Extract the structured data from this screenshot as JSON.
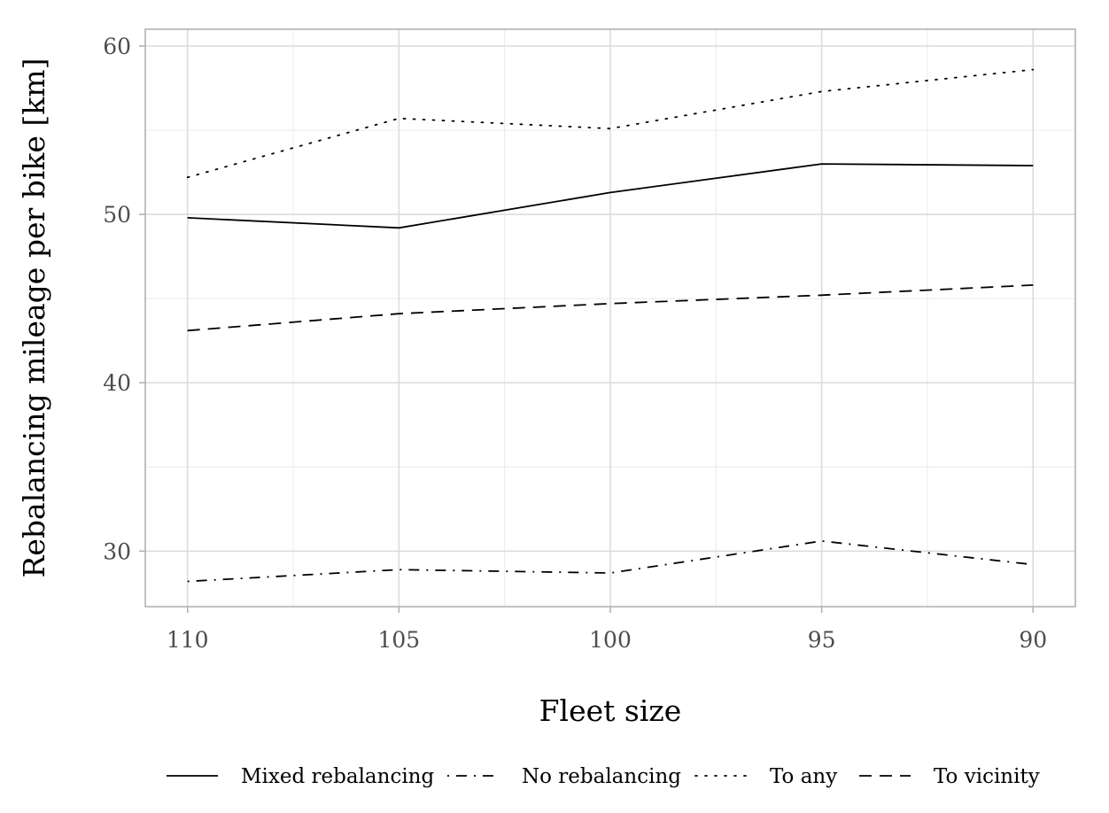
{
  "chart_data": {
    "type": "line",
    "title": "",
    "xlabel": "Fleet size",
    "ylabel": "Rebalancing mileage per bike [km]",
    "categories": [
      "110",
      "105",
      "100",
      "95",
      "90"
    ],
    "x": [
      110,
      105,
      100,
      95,
      90
    ],
    "x_reversed": true,
    "xlim": [
      111,
      89
    ],
    "ylim": [
      26.7,
      61.0
    ],
    "yticks": [
      30,
      40,
      50,
      60
    ],
    "grid": true,
    "legend_position": "bottom",
    "series": [
      {
        "name": "Mixed rebalancing",
        "linetype": "solid",
        "values": [
          49.8,
          49.2,
          51.3,
          53.0,
          52.9
        ]
      },
      {
        "name": "No rebalancing",
        "linetype": "dotdash",
        "values": [
          28.2,
          28.9,
          28.7,
          30.6,
          29.2
        ]
      },
      {
        "name": "To any",
        "linetype": "dotted",
        "values": [
          52.2,
          55.7,
          55.1,
          57.3,
          58.6
        ]
      },
      {
        "name": "To vicinity",
        "linetype": "dashed",
        "values": [
          43.1,
          44.1,
          44.7,
          45.2,
          45.8
        ]
      }
    ]
  }
}
